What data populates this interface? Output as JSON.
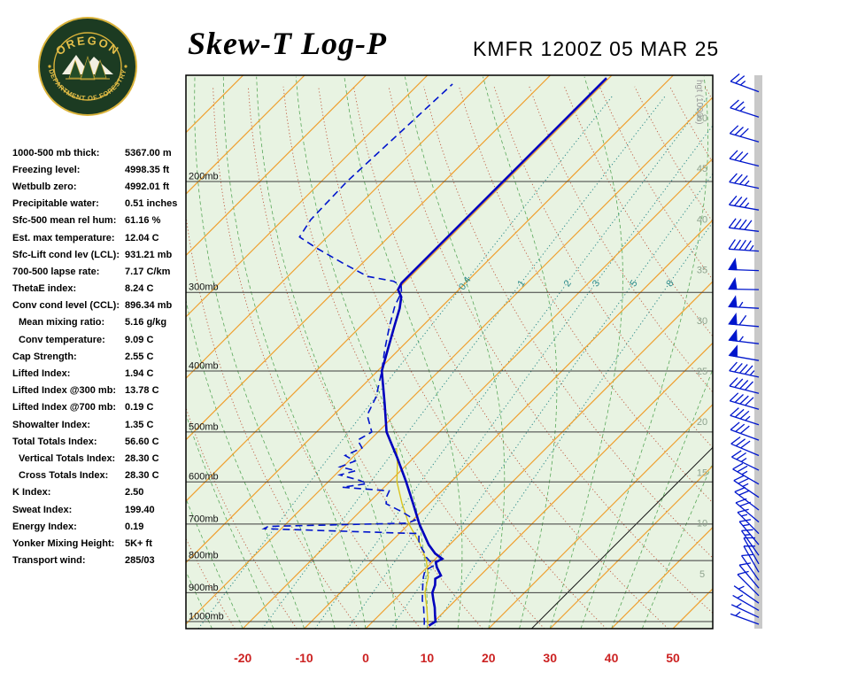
{
  "header": {
    "title": "Skew-T Log-P",
    "station": "KMFR 1200Z 05 MAR 25",
    "logo_text_top": "OREGON",
    "logo_text_bottom": "DEPARTMENT OF FORESTRY"
  },
  "indices": [
    {
      "label": "1000-500 mb thick:",
      "value": "5367.00 m",
      "indent": false
    },
    {
      "label": "Freezing level:",
      "value": "4998.35 ft",
      "indent": false
    },
    {
      "label": "Wetbulb zero:",
      "value": "4992.01 ft",
      "indent": false
    },
    {
      "label": "Precipitable water:",
      "value": "0.51 inches",
      "indent": false
    },
    {
      "label": "Sfc-500 mean rel hum:",
      "value": "61.16 %",
      "indent": false
    },
    {
      "label": "Est. max temperature:",
      "value": "12.04 C",
      "indent": false
    },
    {
      "label": "Sfc-Lift cond lev (LCL):",
      "value": "931.21 mb",
      "indent": false
    },
    {
      "label": "700-500 lapse rate:",
      "value": "7.17 C/km",
      "indent": false
    },
    {
      "label": "ThetaE index:",
      "value": "8.24 C",
      "indent": false
    },
    {
      "label": "Conv cond level (CCL):",
      "value": "896.34 mb",
      "indent": false
    },
    {
      "label": "Mean mixing ratio:",
      "value": "5.16 g/kg",
      "indent": true
    },
    {
      "label": "Conv temperature:",
      "value": "9.09 C",
      "indent": true
    },
    {
      "label": "Cap Strength:",
      "value": "2.55 C",
      "indent": false
    },
    {
      "label": "Lifted Index:",
      "value": "1.94 C",
      "indent": false
    },
    {
      "label": "Lifted Index @300 mb:",
      "value": "13.78 C",
      "indent": false
    },
    {
      "label": "Lifted Index @700 mb:",
      "value": "0.19 C",
      "indent": false
    },
    {
      "label": "Showalter Index:",
      "value": "1.35 C",
      "indent": false
    },
    {
      "label": "Total Totals Index:",
      "value": "56.60 C",
      "indent": false
    },
    {
      "label": "Vertical Totals Index:",
      "value": "28.30 C",
      "indent": true
    },
    {
      "label": "Cross Totals Index:",
      "value": "28.30 C",
      "indent": true
    },
    {
      "label": "K Index:",
      "value": "2.50",
      "indent": false
    },
    {
      "label": "Sweat Index:",
      "value": "199.40",
      "indent": false
    },
    {
      "label": "Energy Index:",
      "value": "0.19",
      "indent": false
    },
    {
      "label": "Yonker Mixing Height:",
      "value": "5K+ ft",
      "indent": false
    },
    {
      "label": "Transport wind:",
      "value": "285/03",
      "indent": false
    }
  ],
  "chart_data": {
    "type": "line",
    "subtype": "skew-t-log-p-sounding",
    "x_axis": {
      "ticks": [
        -20,
        -10,
        0,
        10,
        20,
        30,
        40,
        50
      ],
      "unit": "C"
    },
    "pressure_levels_mb": [
      200,
      300,
      400,
      500,
      600,
      700,
      800,
      900,
      1000
    ],
    "pressure_labels": [
      "200mb",
      "300mb",
      "400mb",
      "500mb",
      "600mb",
      "700mb",
      "800mb",
      "900mb",
      "1000mb"
    ],
    "height_scale": {
      "title": "hgt (1000s)",
      "labels": [
        50,
        45,
        40,
        35,
        30,
        25,
        20,
        15,
        10,
        5
      ]
    },
    "mixing_ratio_lines_gkg": [
      0.4,
      1,
      2,
      3,
      5,
      8
    ],
    "isotherms_c": {
      "start": -120,
      "end": 50,
      "step": 10
    },
    "highlight_isotherm_c": 27,
    "dry_adiabats_k": {
      "start": 230,
      "end": 450,
      "step": 10
    },
    "moist_adiabats_c": {
      "start": -55,
      "end": 45,
      "step": 5
    },
    "temperature_profile": {
      "pressure_mb": [
        1015,
        1000,
        975,
        950,
        925,
        900,
        875,
        855,
        845,
        820,
        805,
        795,
        780,
        755,
        700,
        650,
        600,
        550,
        500,
        450,
        400,
        370,
        340,
        318,
        305,
        297,
        290,
        137
      ],
      "temp_c": [
        9.8,
        10.2,
        9.0,
        7.8,
        6.4,
        5.0,
        4.2,
        3.2,
        3.6,
        1.6,
        0.6,
        1.1,
        -0.9,
        -3.4,
        -8.3,
        -12.6,
        -17.3,
        -22.6,
        -28.6,
        -33.6,
        -39.3,
        -41.8,
        -44.5,
        -46.6,
        -48.2,
        -49.9,
        -50.4,
        -50.4
      ]
    },
    "dewpoint_profile": {
      "pressure_mb": [
        1012,
        1000,
        975,
        950,
        925,
        900,
        875,
        850,
        830,
        815,
        805,
        790,
        775,
        760,
        745,
        725,
        712,
        706,
        698,
        690,
        670,
        650,
        635,
        620,
        612,
        604,
        597,
        585,
        576,
        568,
        556,
        545,
        530,
        515,
        500,
        470,
        440,
        400,
        370,
        340,
        315,
        300,
        293,
        288,
        283,
        270,
        255,
        245,
        230,
        200,
        170,
        140
      ],
      "temp_c": [
        8.9,
        8.4,
        7.2,
        6.0,
        4.6,
        3.4,
        2.2,
        1.0,
        0.2,
        0.8,
        -0.2,
        -1.8,
        -3.0,
        -4.4,
        -5.6,
        -6.8,
        -32.8,
        -32.5,
        -10.4,
        -9.6,
        -13.0,
        -17.0,
        -18.0,
        -18.6,
        -26.8,
        -23.4,
        -25.0,
        -29.2,
        -27.3,
        -30.5,
        -29.0,
        -31.5,
        -30.0,
        -32.0,
        -31.0,
        -34.5,
        -36.0,
        -39.3,
        -42.3,
        -45.3,
        -47.8,
        -48.9,
        -50.0,
        -52.0,
        -57.0,
        -63.0,
        -70.0,
        -74.5,
        -75.5,
        -75.8,
        -75.2,
        -74.5
      ]
    },
    "wetbulb_profile": {
      "pressure_mb": [
        1012,
        950,
        900,
        850,
        800,
        750,
        700,
        650,
        600,
        560,
        530
      ],
      "temp_c": [
        9.5,
        6.5,
        3.8,
        1.8,
        -1.2,
        -5.2,
        -10.0,
        -14.4,
        -18.8,
        -21.8,
        -24.4
      ]
    },
    "wind_profile": [
      [
        1010,
        290,
        3
      ],
      [
        985,
        295,
        4
      ],
      [
        960,
        300,
        5
      ],
      [
        935,
        305,
        6
      ],
      [
        910,
        315,
        8
      ],
      [
        885,
        320,
        9
      ],
      [
        860,
        325,
        10
      ],
      [
        835,
        330,
        11
      ],
      [
        810,
        330,
        12
      ],
      [
        785,
        325,
        14
      ],
      [
        755,
        320,
        15
      ],
      [
        725,
        315,
        17
      ],
      [
        695,
        310,
        19
      ],
      [
        665,
        307,
        21
      ],
      [
        635,
        304,
        23
      ],
      [
        605,
        300,
        25
      ],
      [
        575,
        296,
        27
      ],
      [
        545,
        293,
        29
      ],
      [
        515,
        290,
        32
      ],
      [
        487,
        288,
        35
      ],
      [
        460,
        286,
        38
      ],
      [
        434,
        284,
        42
      ],
      [
        409,
        282,
        47
      ],
      [
        385,
        280,
        52
      ],
      [
        362,
        277,
        57
      ],
      [
        340,
        275,
        60
      ],
      [
        318,
        273,
        55
      ],
      [
        297,
        271,
        52
      ],
      [
        277,
        272,
        48
      ],
      [
        258,
        274,
        44
      ],
      [
        240,
        277,
        40
      ],
      [
        222,
        280,
        37
      ],
      [
        205,
        282,
        34
      ],
      [
        189,
        284,
        31
      ],
      [
        173,
        286,
        28
      ],
      [
        158,
        288,
        26
      ],
      [
        144,
        290,
        23
      ]
    ],
    "colors": {
      "chart_bg": "#e8f3e2",
      "isobar": "#3c3c3c",
      "isotherm": "#efa030",
      "dry_adiabat": "#bf5a40",
      "moist_adiabat": "#5aa85a",
      "mixing_ratio": "#2b8a8a",
      "temperature_trace": "#0000bd",
      "dewpoint_trace": "#0014cc",
      "wetbulb_trace": "#d9c41e",
      "highlight_isotherm": "#1a1a1a",
      "wind_barb": "#0016cc",
      "x_axis_label": "#cc2222",
      "pressure_label": "#111111",
      "height_label": "#8da28d",
      "height_title": "#9a9a9a",
      "side_strip": "#c9c9c9",
      "border": "#000000"
    }
  }
}
